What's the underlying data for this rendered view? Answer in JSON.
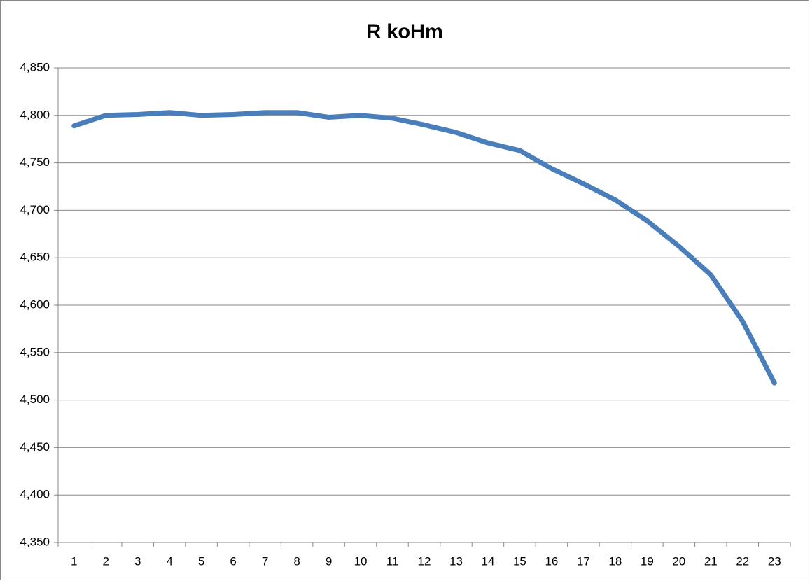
{
  "chart_data": {
    "type": "line",
    "title": "R koHm",
    "categories": [
      "1",
      "2",
      "3",
      "4",
      "5",
      "6",
      "7",
      "8",
      "9",
      "10",
      "11",
      "12",
      "13",
      "14",
      "15",
      "16",
      "17",
      "18",
      "19",
      "20",
      "21",
      "22",
      "23"
    ],
    "series": [
      {
        "name": "R koHm",
        "color": "#4a7ebb",
        "values": [
          4789,
          4800,
          4801,
          4803,
          4800,
          4801,
          4803,
          4803,
          4798,
          4800,
          4797,
          4790,
          4782,
          4771,
          4763,
          4744,
          4728,
          4711,
          4689,
          4662,
          4632,
          4583,
          4518
        ]
      }
    ],
    "ylim": [
      4350,
      4850
    ],
    "yticks": [
      {
        "value": 4350,
        "label": "4,350"
      },
      {
        "value": 4400,
        "label": "4,400"
      },
      {
        "value": 4450,
        "label": "4,450"
      },
      {
        "value": 4500,
        "label": "4,500"
      },
      {
        "value": 4550,
        "label": "4,550"
      },
      {
        "value": 4600,
        "label": "4,600"
      },
      {
        "value": 4650,
        "label": "4,650"
      },
      {
        "value": 4700,
        "label": "4,700"
      },
      {
        "value": 4750,
        "label": "4,750"
      },
      {
        "value": 4800,
        "label": "4,800"
      },
      {
        "value": 4850,
        "label": "4,850"
      }
    ],
    "grid": true
  }
}
